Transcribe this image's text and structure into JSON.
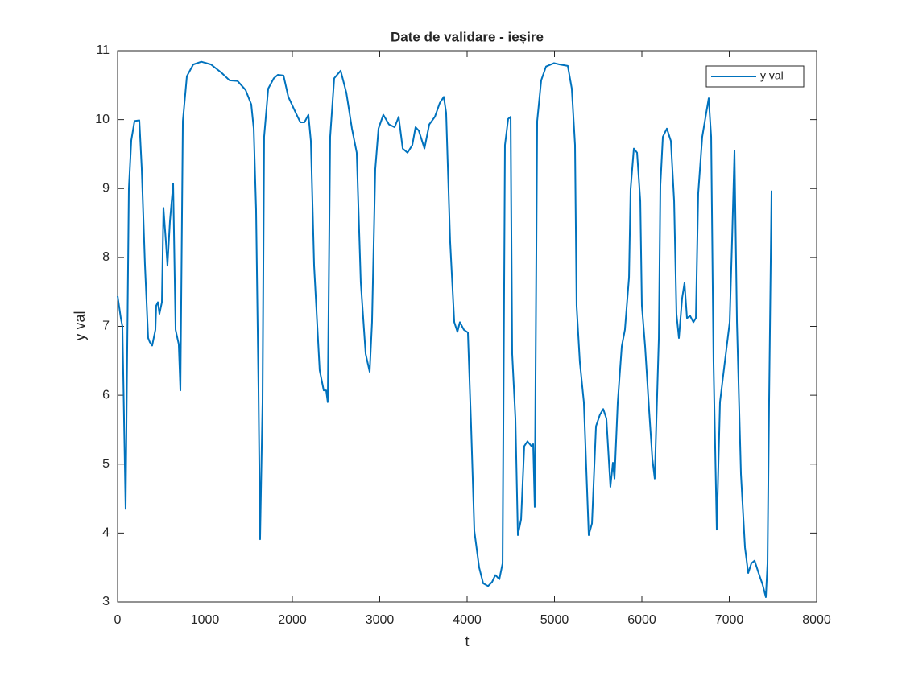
{
  "chart_data": {
    "type": "line",
    "title": "Date de validare - ieșire",
    "xlabel": "t",
    "ylabel": "y val",
    "x": [
      0,
      37,
      55,
      92,
      129,
      157,
      194,
      249,
      276,
      313,
      350,
      369,
      396,
      433,
      442,
      461,
      479,
      507,
      525,
      553,
      571,
      599,
      636,
      664,
      700,
      719,
      747,
      793,
      866,
      959,
      1069,
      1189,
      1281,
      1373,
      1465,
      1530,
      1558,
      1585,
      1613,
      1631,
      1659,
      1677,
      1724,
      1788,
      1834,
      1899,
      1954,
      2046,
      2092,
      2138,
      2184,
      2212,
      2249,
      2313,
      2359,
      2387,
      2405,
      2433,
      2479,
      2553,
      2618,
      2682,
      2737,
      2783,
      2839,
      2885,
      2912,
      2949,
      2986,
      3041,
      3106,
      3171,
      3217,
      3263,
      3318,
      3373,
      3410,
      3447,
      3512,
      3567,
      3631,
      3687,
      3733,
      3760,
      3806,
      3853,
      3889,
      3917,
      3963,
      4009,
      4046,
      4083,
      4138,
      4184,
      4240,
      4286,
      4323,
      4369,
      4406,
      4433,
      4470,
      4498,
      4516,
      4553,
      4581,
      4618,
      4654,
      4691,
      4737,
      4756,
      4774,
      4802,
      4848,
      4903,
      4995,
      5060,
      5152,
      5198,
      5235,
      5253,
      5290,
      5336,
      5392,
      5429,
      5475,
      5521,
      5558,
      5594,
      5640,
      5668,
      5687,
      5724,
      5770,
      5806,
      5853,
      5871,
      5908,
      5945,
      5982,
      6000,
      6037,
      6083,
      6120,
      6147,
      6194,
      6212,
      6240,
      6286,
      6332,
      6369,
      6396,
      6424,
      6461,
      6488,
      6516,
      6553,
      6590,
      6618,
      6645,
      6691,
      6737,
      6765,
      6793,
      6820,
      6857,
      6894,
      6949,
      7005,
      7032,
      7060,
      7088,
      7134,
      7180,
      7217,
      7253,
      7290,
      7336,
      7382,
      7419,
      7438,
      7456,
      7484
    ],
    "series": [
      {
        "name": "y val",
        "color": "#0072bd",
        "values": [
          7.44,
          7.12,
          7.0,
          4.35,
          9.0,
          9.7,
          9.98,
          9.99,
          9.3,
          7.9,
          6.83,
          6.77,
          6.72,
          6.95,
          7.3,
          7.35,
          7.18,
          7.35,
          8.72,
          8.23,
          7.88,
          8.52,
          9.07,
          6.95,
          6.74,
          6.07,
          9.98,
          10.63,
          10.8,
          10.84,
          10.8,
          10.68,
          10.57,
          10.56,
          10.43,
          10.22,
          9.87,
          8.7,
          6.07,
          3.91,
          5.9,
          9.75,
          10.45,
          10.6,
          10.65,
          10.64,
          10.33,
          10.08,
          9.96,
          9.96,
          10.07,
          9.69,
          7.88,
          6.36,
          6.07,
          6.07,
          5.9,
          9.75,
          10.6,
          10.71,
          10.39,
          9.87,
          9.52,
          7.64,
          6.6,
          6.34,
          7.06,
          9.28,
          9.87,
          10.07,
          9.93,
          9.89,
          10.04,
          9.58,
          9.52,
          9.63,
          9.89,
          9.84,
          9.58,
          9.93,
          10.04,
          10.24,
          10.33,
          10.1,
          8.23,
          7.06,
          6.92,
          7.06,
          6.95,
          6.91,
          5.55,
          4.03,
          3.5,
          3.27,
          3.23,
          3.29,
          3.39,
          3.33,
          3.56,
          9.63,
          10.01,
          10.04,
          6.6,
          5.66,
          3.97,
          4.2,
          5.26,
          5.33,
          5.26,
          5.29,
          4.38,
          9.98,
          10.57,
          10.77,
          10.82,
          10.8,
          10.78,
          10.45,
          9.63,
          7.3,
          6.48,
          5.9,
          3.97,
          4.14,
          5.55,
          5.72,
          5.8,
          5.66,
          4.67,
          5.02,
          4.79,
          5.9,
          6.71,
          6.95,
          7.71,
          8.99,
          9.58,
          9.52,
          8.82,
          7.3,
          6.71,
          5.78,
          5.08,
          4.79,
          6.83,
          9.05,
          9.75,
          9.87,
          9.69,
          8.82,
          7.18,
          6.83,
          7.41,
          7.63,
          7.12,
          7.15,
          7.06,
          7.12,
          8.93,
          9.75,
          10.1,
          10.31,
          9.75,
          6.48,
          4.05,
          5.9,
          6.48,
          7.06,
          8.23,
          9.55,
          7.06,
          4.85,
          3.79,
          3.42,
          3.56,
          3.6,
          3.42,
          3.25,
          3.07,
          3.56,
          5.9,
          8.97
        ]
      }
    ],
    "xlim": [
      0,
      8000
    ],
    "xticks": [
      0,
      1000,
      2000,
      3000,
      4000,
      5000,
      6000,
      7000,
      8000
    ],
    "ylim": [
      3,
      11
    ],
    "yticks": [
      3,
      4,
      5,
      6,
      7,
      8,
      9,
      10,
      11
    ],
    "legend": "top-right"
  }
}
